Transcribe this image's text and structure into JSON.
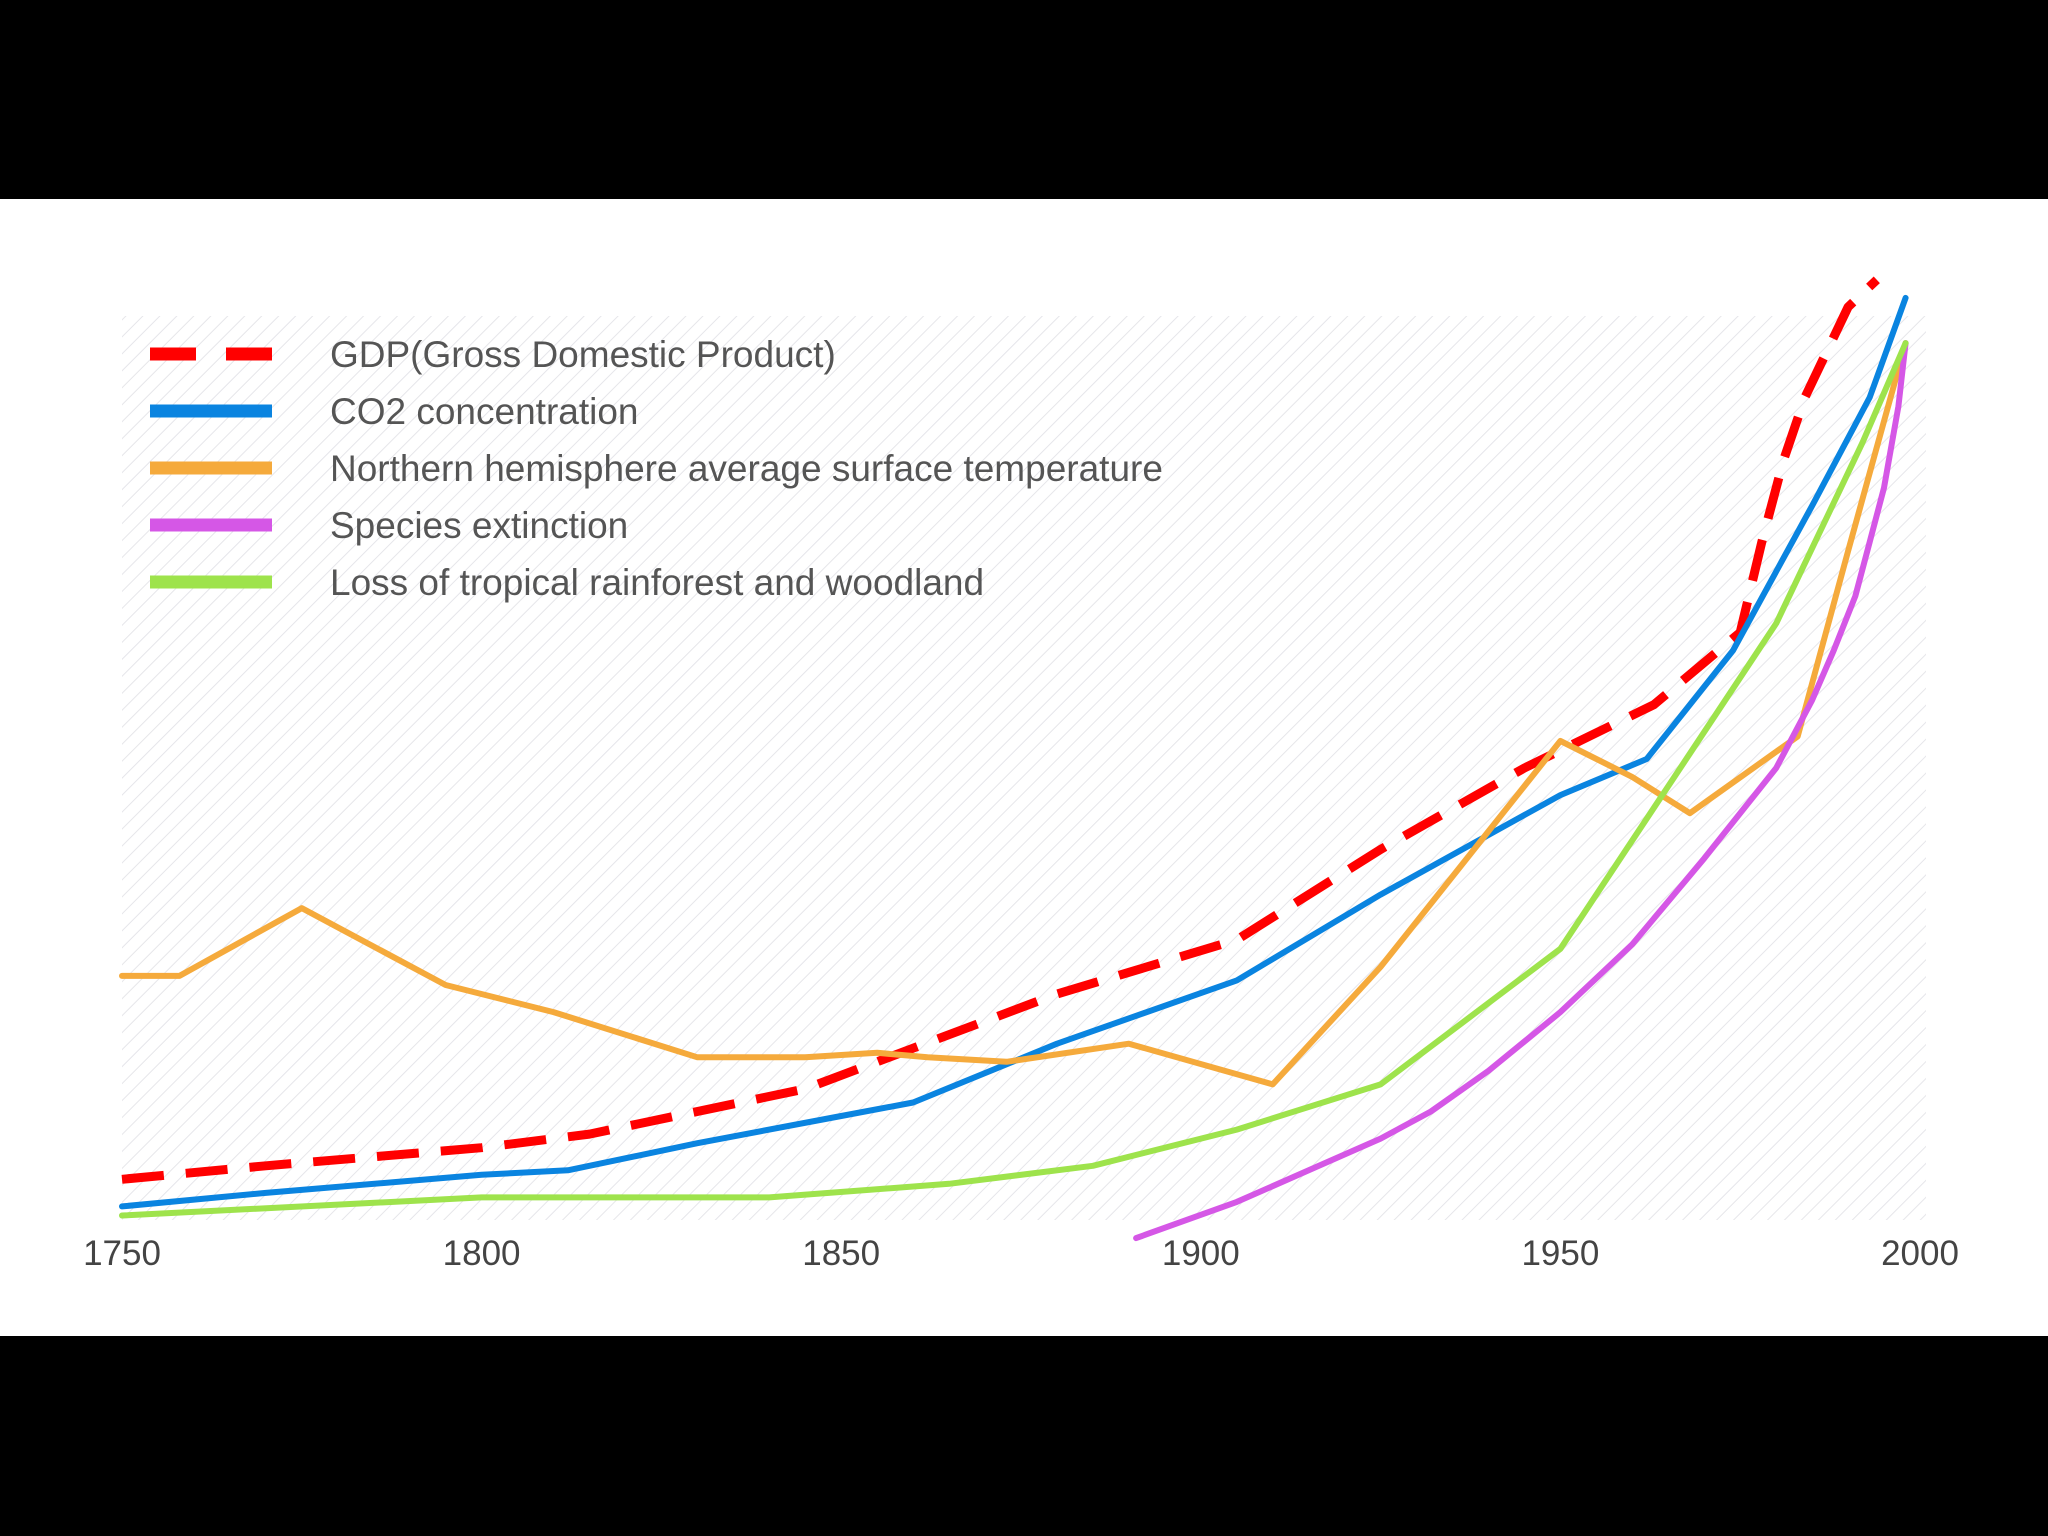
{
  "chart_data": {
    "type": "line",
    "title": "",
    "xlabel": "",
    "ylabel": "",
    "xlim": [
      1750,
      2000
    ],
    "ylim": [
      0,
      100
    ],
    "grid": false,
    "legend_position": "top-left",
    "x_ticks": [
      1750,
      1800,
      1850,
      1900,
      1950,
      2000
    ],
    "x_tick_labels": [
      "1750",
      "1800",
      "1850",
      "1900",
      "1950",
      "2000"
    ],
    "background_color": "#ffffff",
    "frame_color": "#000000",
    "series": [
      {
        "name": "GDP(Gross Domestic Product)",
        "color": "#ff0000",
        "style": "dashed",
        "x": [
          1750,
          1770,
          1800,
          1815,
          1830,
          1845,
          1860,
          1880,
          1905,
          1925,
          1945,
          1963,
          1975,
          1978,
          1981,
          1984,
          1987,
          1990,
          1994
        ],
        "y": [
          4.5,
          6,
          8,
          9.5,
          12,
          14.5,
          19,
          25,
          31,
          41,
          50,
          57,
          65,
          75,
          84,
          91,
          96,
          101,
          104
        ]
      },
      {
        "name": "CO2 concentration",
        "color": "#0a84e0",
        "style": "solid",
        "x": [
          1750,
          1770,
          1800,
          1812,
          1830,
          1850,
          1860,
          1880,
          1905,
          1925,
          1950,
          1962,
          1974,
          1985,
          1993,
          1998
        ],
        "y": [
          1.5,
          3,
          5,
          5.5,
          8.5,
          11.5,
          13,
          19.5,
          26.5,
          36,
          47,
          51,
          63,
          79,
          91,
          102
        ]
      },
      {
        "name": "Northern hemisphere average surface temperature",
        "color": "#f5aa3c",
        "style": "solid",
        "x": [
          1750,
          1758,
          1775,
          1795,
          1810,
          1830,
          1845,
          1855,
          1862,
          1873,
          1890,
          1910,
          1925,
          1945,
          1950,
          1960,
          1968,
          1983,
          1990,
          1998
        ],
        "y": [
          27,
          27,
          34.5,
          26,
          23,
          18,
          18,
          18.5,
          18,
          17.5,
          19.5,
          15,
          28,
          48,
          53,
          49,
          45,
          53.5,
          74,
          97
        ]
      },
      {
        "name": "Species extinction",
        "color": "#d557e6",
        "style": "solid",
        "x": [
          1891,
          1905,
          1915,
          1925,
          1932,
          1940,
          1950,
          1960,
          1970,
          1980,
          1985,
          1988,
          1991,
          1993,
          1995,
          1997,
          1998
        ],
        "y": [
          -2,
          2,
          5.5,
          9,
          12,
          16.5,
          23,
          30.5,
          40,
          50,
          57.5,
          63,
          69,
          75,
          81,
          90,
          97
        ]
      },
      {
        "name": "Loss of tropical rainforest and woodland",
        "color": "#9ee34c",
        "style": "solid",
        "x": [
          1750,
          1800,
          1840,
          1865,
          1885,
          1905,
          1925,
          1950,
          1965,
          1980,
          1992,
          1998
        ],
        "y": [
          0.5,
          2.5,
          2.5,
          4,
          6,
          10,
          15,
          30,
          48,
          66,
          86,
          97
        ]
      }
    ]
  }
}
